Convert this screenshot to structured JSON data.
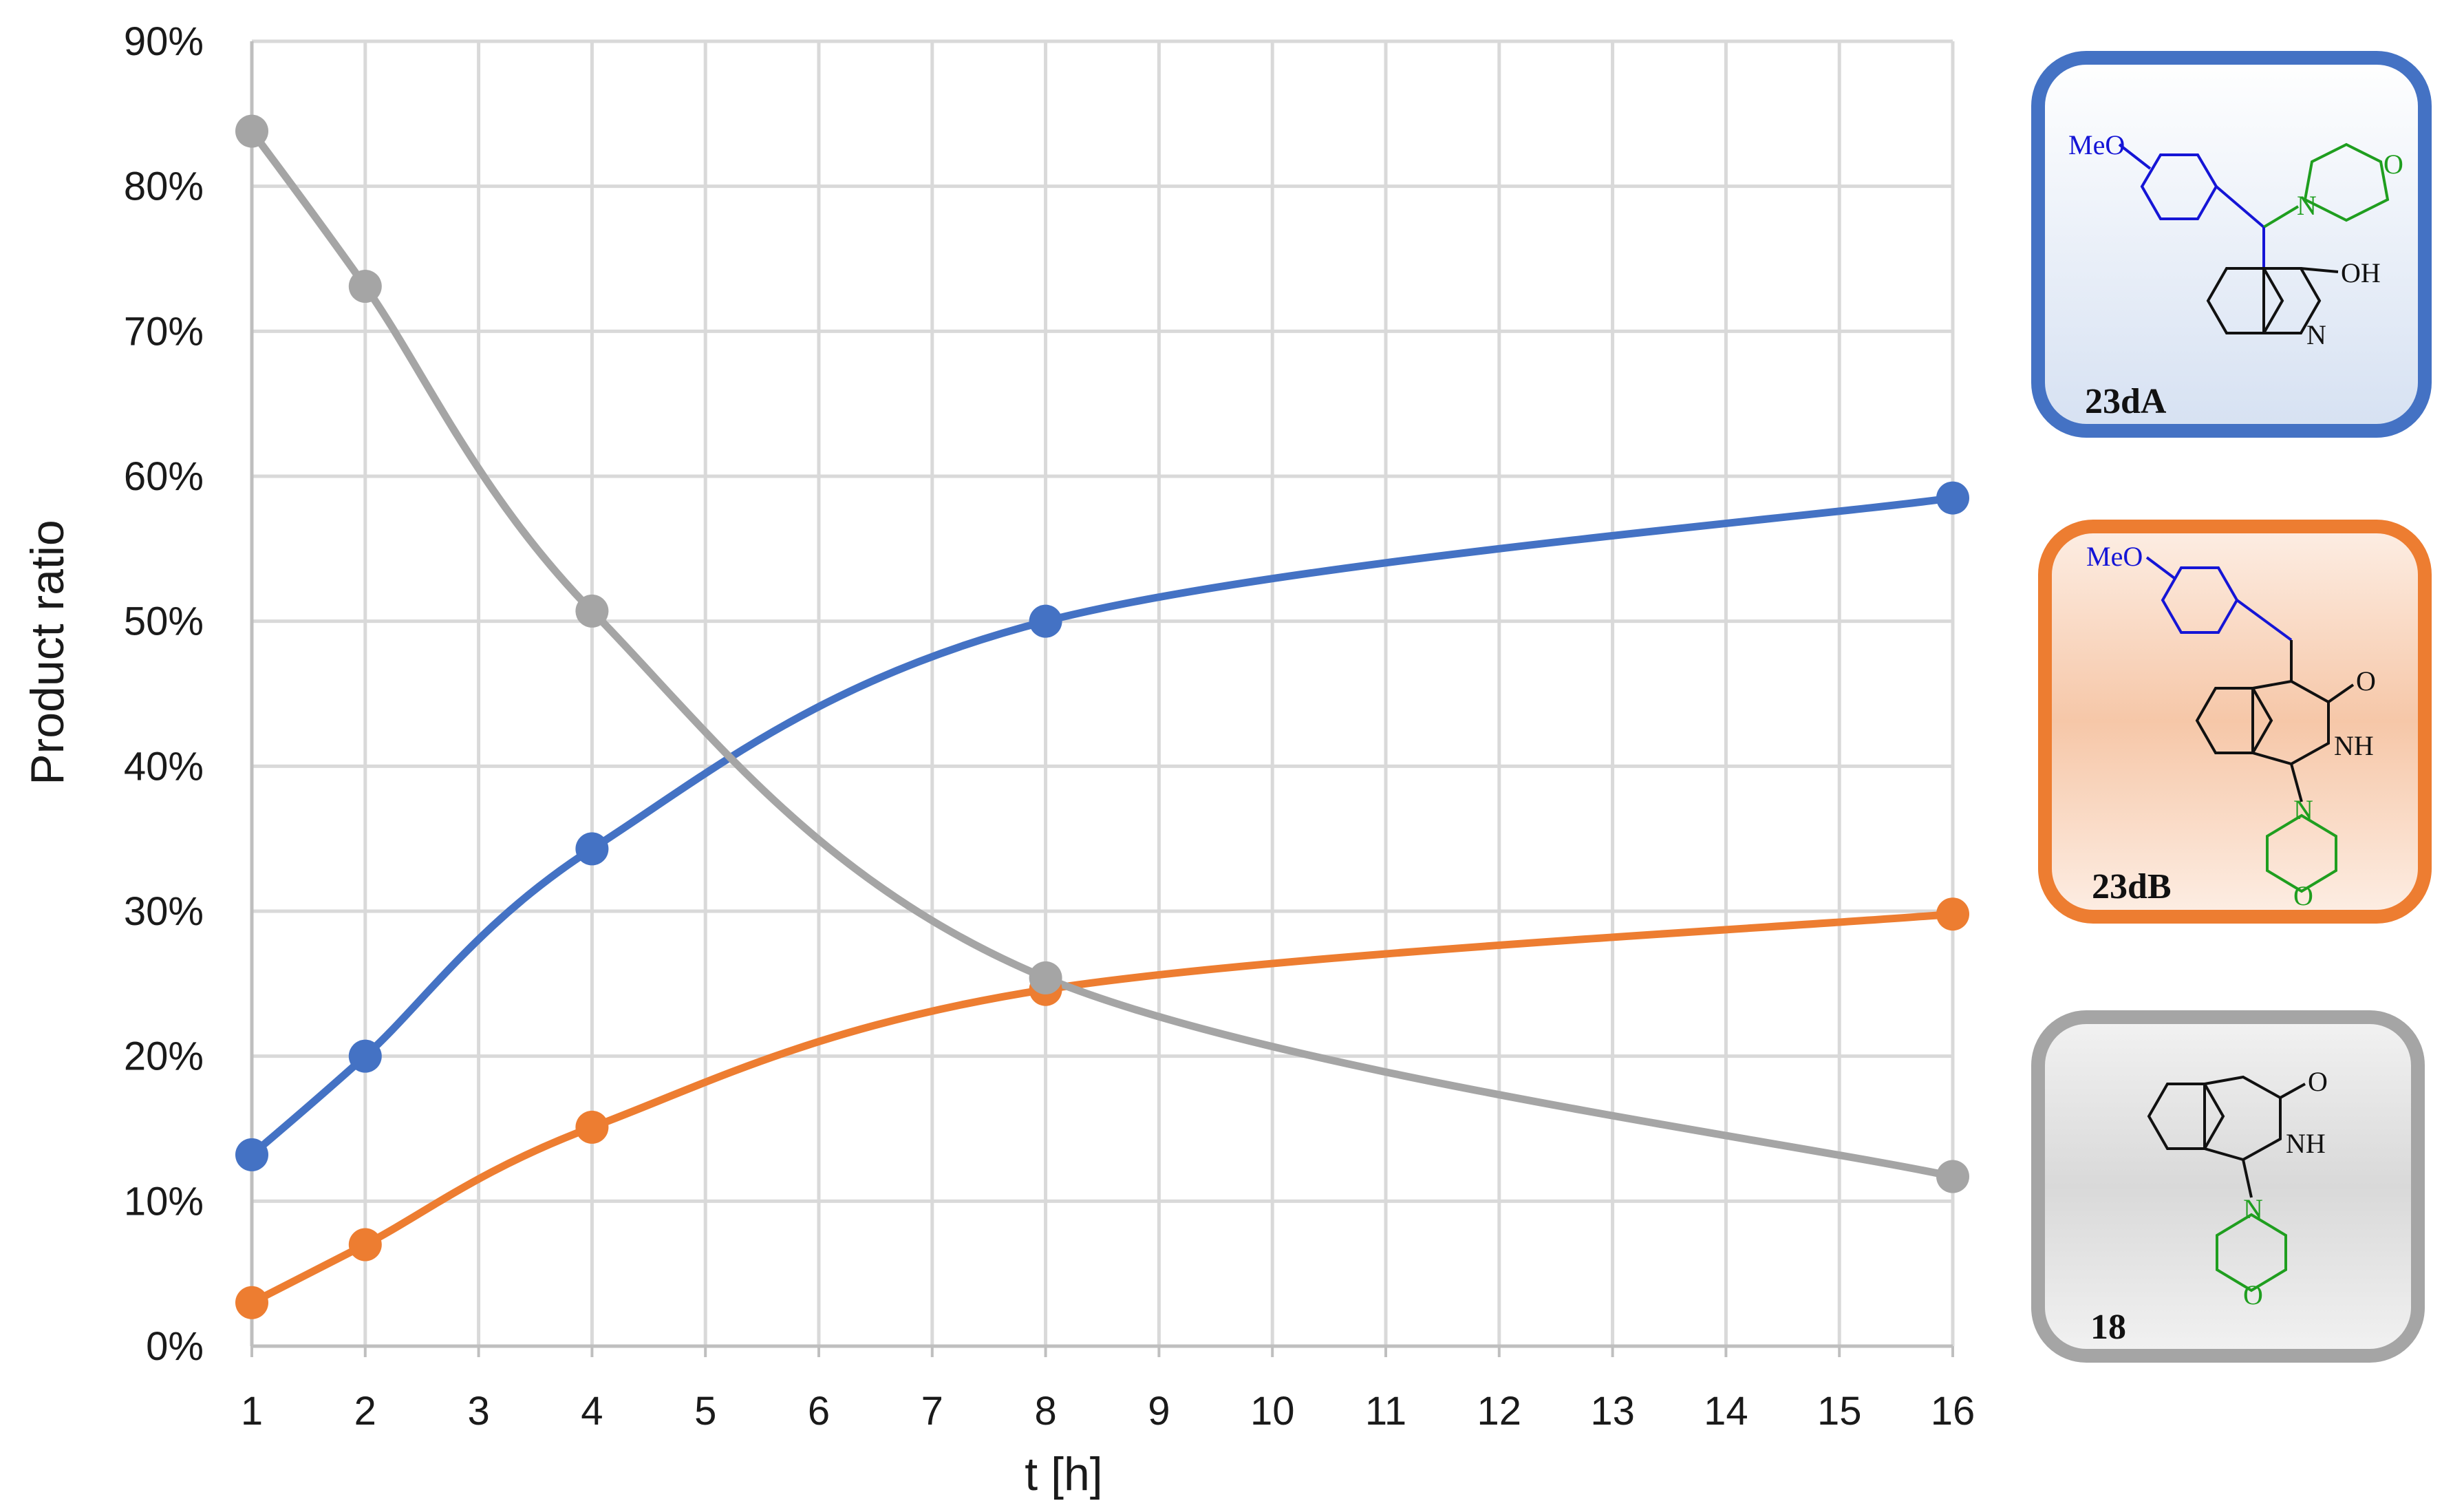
{
  "chart_data": {
    "type": "line",
    "xlabel": "t [h]",
    "ylabel": "Product ratio",
    "x_ticks": [
      "1",
      "2",
      "3",
      "4",
      "5",
      "6",
      "7",
      "8",
      "9",
      "10",
      "11",
      "12",
      "13",
      "14",
      "15",
      "16"
    ],
    "y_ticks": [
      "0%",
      "10%",
      "20%",
      "30%",
      "40%",
      "50%",
      "60%",
      "70%",
      "80%",
      "90%"
    ],
    "ylim": [
      0,
      90
    ],
    "grid": true,
    "series": [
      {
        "name": "23dA",
        "color": "#4472C4",
        "x": [
          1,
          2,
          4,
          8,
          16
        ],
        "y": [
          13.2,
          20.0,
          34.3,
          50.0,
          58.5
        ]
      },
      {
        "name": "23dB",
        "color": "#ED7D31",
        "x": [
          1,
          2,
          4,
          8,
          16
        ],
        "y": [
          3.0,
          7.0,
          15.1,
          24.6,
          29.8
        ]
      },
      {
        "name": "18",
        "color": "#A5A5A5",
        "x": [
          1,
          2,
          4,
          8,
          16
        ],
        "y": [
          83.8,
          73.1,
          50.7,
          25.4,
          11.7
        ]
      }
    ]
  },
  "legend": {
    "placement": "right",
    "items": [
      {
        "label": "23dA",
        "atoms": [
          "MeO",
          "N",
          "O",
          "OH",
          "N"
        ]
      },
      {
        "label": "23dB",
        "atoms": [
          "MeO",
          "O",
          "NH",
          "N",
          "O"
        ]
      },
      {
        "label": "18",
        "atoms": [
          "O",
          "NH",
          "N",
          "O"
        ]
      }
    ]
  }
}
